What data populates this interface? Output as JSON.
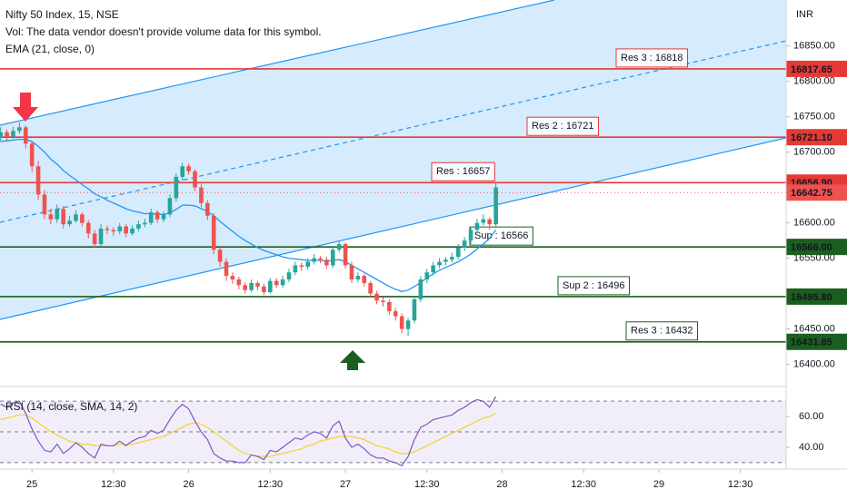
{
  "chart_data": {
    "type": "candlestick",
    "title": "Nifty 50 Index, 15, NSE",
    "volume_note": "Vol: The data vendor doesn't provide volume data for this symbol.",
    "ema_label": "EMA (21, close, 0)",
    "rsi_label": "RSI (14, close, SMA, 14, 2)",
    "currency": "INR",
    "up_color": "#26a69a",
    "down_color": "#ef5350",
    "ema_color": "#2196f3",
    "rsi_color": "#7e57c2",
    "rsi_ma_color": "#f2d43c",
    "xlim": [
      -5.1,
      120.3
    ],
    "xticks": [
      {
        "value": 0,
        "label": "25"
      },
      {
        "value": 13,
        "label": "12:30"
      },
      {
        "value": 25,
        "label": "26"
      },
      {
        "value": 38,
        "label": "12:30"
      },
      {
        "value": 50,
        "label": "27"
      },
      {
        "value": 63,
        "label": "12:30"
      },
      {
        "value": 75,
        "label": "28"
      },
      {
        "value": 88,
        "label": "12:30"
      },
      {
        "value": 100,
        "label": "29"
      },
      {
        "value": 113,
        "label": "12:30"
      }
    ],
    "ylim": [
      16370,
      16915
    ],
    "yticks": [
      {
        "value": 16400,
        "label": "16400.00"
      },
      {
        "value": 16450,
        "label": "16450.00"
      },
      {
        "value": 16550,
        "label": "16550.00"
      },
      {
        "value": 16600,
        "label": "16600.00"
      },
      {
        "value": 16700,
        "label": "16700.00"
      },
      {
        "value": 16750,
        "label": "16750.00"
      },
      {
        "value": 16800,
        "label": "16800.00"
      },
      {
        "value": 16850,
        "label": "16850.00"
      }
    ],
    "x": [
      -5,
      -4,
      -3,
      -2,
      -1,
      0,
      1,
      2,
      3,
      4,
      5,
      6,
      7,
      8,
      9,
      10,
      11,
      12,
      13,
      14,
      15,
      16,
      17,
      18,
      19,
      20,
      21,
      22,
      23,
      24,
      25,
      26,
      27,
      28,
      29,
      30,
      31,
      32,
      33,
      34,
      35,
      36,
      37,
      38,
      39,
      40,
      41,
      42,
      43,
      44,
      45,
      46,
      47,
      48,
      49,
      50,
      51,
      52,
      53,
      54,
      55,
      56,
      57,
      58,
      59,
      60,
      61,
      62,
      63,
      64,
      65,
      66,
      67,
      68,
      69,
      70,
      71,
      72,
      73,
      74
    ],
    "ohlc": [
      [
        16720,
        16735,
        16715,
        16728
      ],
      [
        16728,
        16732,
        16716,
        16722
      ],
      [
        16722,
        16736,
        16719,
        16730
      ],
      [
        16730,
        16742,
        16726,
        16735
      ],
      [
        16735,
        16738,
        16705,
        16712
      ],
      [
        16712,
        16715,
        16672,
        16680
      ],
      [
        16680,
        16688,
        16632,
        16640
      ],
      [
        16640,
        16646,
        16605,
        16612
      ],
      [
        16612,
        16620,
        16598,
        16605
      ],
      [
        16605,
        16626,
        16600,
        16620
      ],
      [
        16620,
        16624,
        16592,
        16598
      ],
      [
        16598,
        16610,
        16594,
        16603
      ],
      [
        16603,
        16618,
        16600,
        16612
      ],
      [
        16612,
        16615,
        16595,
        16600
      ],
      [
        16600,
        16604,
        16578,
        16585
      ],
      [
        16585,
        16590,
        16565,
        16570
      ],
      [
        16570,
        16598,
        16566,
        16592
      ],
      [
        16592,
        16596,
        16584,
        16590
      ],
      [
        16590,
        16594,
        16582,
        16588
      ],
      [
        16588,
        16600,
        16584,
        16595
      ],
      [
        16595,
        16598,
        16580,
        16585
      ],
      [
        16585,
        16596,
        16582,
        16592
      ],
      [
        16592,
        16603,
        16588,
        16598
      ],
      [
        16598,
        16606,
        16594,
        16600
      ],
      [
        16600,
        16620,
        16597,
        16615
      ],
      [
        16615,
        16618,
        16600,
        16605
      ],
      [
        16605,
        16616,
        16601,
        16612
      ],
      [
        16612,
        16640,
        16608,
        16635
      ],
      [
        16635,
        16670,
        16630,
        16665
      ],
      [
        16665,
        16685,
        16660,
        16680
      ],
      [
        16680,
        16684,
        16668,
        16673
      ],
      [
        16673,
        16676,
        16645,
        16650
      ],
      [
        16650,
        16655,
        16622,
        16628
      ],
      [
        16628,
        16632,
        16604,
        16610
      ],
      [
        16610,
        16614,
        16556,
        16562
      ],
      [
        16562,
        16566,
        16538,
        16545
      ],
      [
        16545,
        16550,
        16518,
        16525
      ],
      [
        16525,
        16530,
        16514,
        16520
      ],
      [
        16520,
        16524,
        16506,
        16512
      ],
      [
        16512,
        16516,
        16500,
        16505
      ],
      [
        16505,
        16520,
        16502,
        16515
      ],
      [
        16515,
        16518,
        16505,
        16510
      ],
      [
        16510,
        16514,
        16498,
        16502
      ],
      [
        16502,
        16522,
        16500,
        16518
      ],
      [
        16518,
        16522,
        16508,
        16512
      ],
      [
        16512,
        16525,
        16508,
        16520
      ],
      [
        16520,
        16535,
        16516,
        16530
      ],
      [
        16530,
        16545,
        16526,
        16540
      ],
      [
        16540,
        16544,
        16532,
        16538
      ],
      [
        16538,
        16550,
        16534,
        16545
      ],
      [
        16545,
        16556,
        16541,
        16550
      ],
      [
        16550,
        16553,
        16543,
        16548
      ],
      [
        16548,
        16552,
        16535,
        16540
      ],
      [
        16540,
        16568,
        16536,
        16562
      ],
      [
        16562,
        16575,
        16558,
        16570
      ],
      [
        16570,
        16572,
        16535,
        16540
      ],
      [
        16540,
        16545,
        16515,
        16520
      ],
      [
        16520,
        16530,
        16516,
        16525
      ],
      [
        16525,
        16528,
        16510,
        16515
      ],
      [
        16515,
        16518,
        16496,
        16500
      ],
      [
        16500,
        16504,
        16485,
        16490
      ],
      [
        16490,
        16495,
        16482,
        16488
      ],
      [
        16488,
        16492,
        16470,
        16475
      ],
      [
        16475,
        16480,
        16462,
        16468
      ],
      [
        16468,
        16472,
        16444,
        16450
      ],
      [
        16450,
        16466,
        16440,
        16462
      ],
      [
        16462,
        16496,
        16458,
        16492
      ],
      [
        16492,
        16525,
        16488,
        16520
      ],
      [
        16520,
        16535,
        16515,
        16530
      ],
      [
        16530,
        16545,
        16526,
        16540
      ],
      [
        16540,
        16550,
        16536,
        16545
      ],
      [
        16545,
        16552,
        16540,
        16548
      ],
      [
        16548,
        16558,
        16544,
        16552
      ],
      [
        16552,
        16570,
        16548,
        16565
      ],
      [
        16565,
        16580,
        16560,
        16575
      ],
      [
        16575,
        16595,
        16570,
        16590
      ],
      [
        16590,
        16606,
        16585,
        16600
      ],
      [
        16600,
        16612,
        16596,
        16605
      ],
      [
        16605,
        16608,
        16590,
        16598
      ],
      [
        16598,
        16658,
        16595,
        16650
      ]
    ],
    "ema": [
      16715,
      16716,
      16717,
      16718,
      16718,
      16715,
      16708,
      16700,
      16690,
      16683,
      16674,
      16667,
      16661,
      16654,
      16648,
      16641,
      16637,
      16632,
      16628,
      16624,
      16620,
      16617,
      16615,
      16613,
      16613,
      16612,
      16612,
      16614,
      16619,
      16625,
      16625,
      16624,
      16620,
      16616,
      16610,
      16602,
      16595,
      16588,
      16581,
      16575,
      16570,
      16565,
      16561,
      16558,
      16555,
      16552,
      16550,
      16549,
      16548,
      16547,
      16547,
      16547,
      16546,
      16547,
      16548,
      16545,
      16540,
      16535,
      16530,
      16525,
      16520,
      16515,
      16510,
      16506,
      16503,
      16505,
      16510,
      16516,
      16522,
      16528,
      16533,
      16537,
      16541,
      16545,
      16550,
      16556,
      16563,
      16570,
      16578,
      16590
    ],
    "levels": [
      {
        "value": 16817.65,
        "color": "#e53935",
        "note": "Res 3 : 16818"
      },
      {
        "value": 16721.1,
        "label": "16721.10",
        "color": "#e53935",
        "note": "Res 2 : 16721"
      },
      {
        "value": 16656.9,
        "label": "16656.90",
        "color": "#e53935",
        "note": "Res : 16657"
      },
      {
        "value": 16642.75,
        "color": "#ef5350"
      },
      {
        "value": 16566,
        "label": "16566.00",
        "color": "#1b5e20",
        "note": "Sup : 16566"
      },
      {
        "value": 16495.8,
        "label": "16495.80",
        "color": "#1b5e20",
        "note": "Sup 2 : 16496"
      },
      {
        "value": 16431.85,
        "color": "#1b5e20",
        "note": "Res 3 : 16432"
      }
    ],
    "rsi_ylim": [
      27,
      76
    ],
    "rsi_yticks": [
      {
        "value": 60,
        "label": "60.00"
      },
      {
        "value": 40,
        "label": "40.00"
      }
    ],
    "rsi_bands": [
      70,
      50,
      30
    ],
    "rsi": [
      68,
      66,
      69,
      70,
      62,
      52,
      44,
      38,
      37,
      42,
      36,
      39,
      43,
      40,
      36,
      33,
      42,
      41,
      41,
      44,
      41,
      44,
      46,
      47,
      51,
      49,
      51,
      58,
      64,
      68,
      65,
      57,
      50,
      45,
      36,
      33,
      31,
      31,
      30,
      30,
      35,
      34,
      32,
      38,
      37,
      40,
      43,
      46,
      45,
      48,
      50,
      49,
      46,
      54,
      57,
      46,
      40,
      42,
      39,
      35,
      33,
      33,
      31,
      30,
      28,
      34,
      45,
      53,
      55,
      58,
      59,
      60,
      61,
      64,
      66,
      69,
      71,
      70,
      66,
      73
    ],
    "rsi_ma": [
      58,
      59,
      60,
      61,
      61,
      59,
      56,
      53,
      50,
      48,
      46,
      44,
      43,
      42,
      42,
      41,
      41,
      41,
      41,
      42,
      42,
      42,
      43,
      44,
      45,
      46,
      47,
      49,
      51,
      53,
      55,
      56,
      55,
      53,
      50,
      47,
      44,
      41,
      38,
      36,
      35,
      34,
      34,
      34,
      35,
      36,
      37,
      38,
      39,
      41,
      42,
      44,
      45,
      46,
      47,
      47,
      47,
      46,
      45,
      43,
      41,
      40,
      39,
      37,
      36,
      36,
      37,
      39,
      41,
      43,
      45,
      47,
      49,
      51,
      53,
      55,
      57,
      59,
      60,
      62
    ]
  }
}
